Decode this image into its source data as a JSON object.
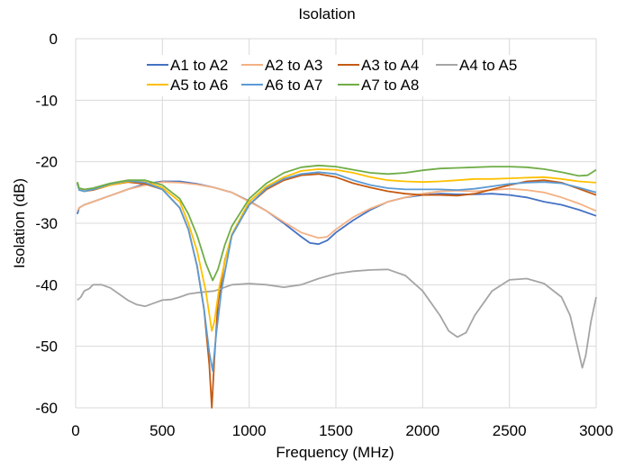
{
  "chart_data": {
    "type": "line",
    "title": "Isolation",
    "xlabel": "Frequency (MHz)",
    "ylabel": "Isolation (dB)",
    "xlim": [
      0,
      3000
    ],
    "ylim": [
      -60,
      0
    ],
    "xticks": [
      0,
      500,
      1000,
      1500,
      2000,
      2500,
      3000
    ],
    "yticks": [
      0,
      -10,
      -20,
      -30,
      -40,
      -50,
      -60
    ],
    "grid": true,
    "legend_position": "top",
    "series": [
      {
        "name": "A1 to A2",
        "color": "#4472C4",
        "points": [
          [
            10,
            -28.5
          ],
          [
            20,
            -27.5
          ],
          [
            50,
            -27
          ],
          [
            100,
            -26.5
          ],
          [
            200,
            -25.5
          ],
          [
            300,
            -24.5
          ],
          [
            400,
            -23.6
          ],
          [
            500,
            -23.2
          ],
          [
            600,
            -23.2
          ],
          [
            700,
            -23.6
          ],
          [
            800,
            -24.2
          ],
          [
            900,
            -25
          ],
          [
            1000,
            -26.4
          ],
          [
            1100,
            -28
          ],
          [
            1200,
            -30
          ],
          [
            1300,
            -32.2
          ],
          [
            1350,
            -33.2
          ],
          [
            1400,
            -33.4
          ],
          [
            1450,
            -32.8
          ],
          [
            1500,
            -31.5
          ],
          [
            1600,
            -29.5
          ],
          [
            1700,
            -27.8
          ],
          [
            1800,
            -26.5
          ],
          [
            1900,
            -25.8
          ],
          [
            2000,
            -25.4
          ],
          [
            2100,
            -25.2
          ],
          [
            2200,
            -25.3
          ],
          [
            2300,
            -25.3
          ],
          [
            2400,
            -25.2
          ],
          [
            2500,
            -25.4
          ],
          [
            2600,
            -25.8
          ],
          [
            2700,
            -26.5
          ],
          [
            2800,
            -27
          ],
          [
            2900,
            -27.8
          ],
          [
            3000,
            -28.8
          ]
        ]
      },
      {
        "name": "A2 to A3",
        "color": "#F4B183",
        "points": [
          [
            10,
            -28
          ],
          [
            20,
            -27.5
          ],
          [
            50,
            -27
          ],
          [
            100,
            -26.5
          ],
          [
            200,
            -25.5
          ],
          [
            300,
            -24.5
          ],
          [
            400,
            -23.8
          ],
          [
            500,
            -23.3
          ],
          [
            600,
            -23.4
          ],
          [
            700,
            -23.7
          ],
          [
            800,
            -24.2
          ],
          [
            900,
            -25
          ],
          [
            1000,
            -26.5
          ],
          [
            1100,
            -28
          ],
          [
            1200,
            -29.8
          ],
          [
            1300,
            -31.5
          ],
          [
            1400,
            -32.4
          ],
          [
            1450,
            -32.2
          ],
          [
            1500,
            -31
          ],
          [
            1600,
            -29
          ],
          [
            1700,
            -27.6
          ],
          [
            1800,
            -26.5
          ],
          [
            1900,
            -25.8
          ],
          [
            2000,
            -25.2
          ],
          [
            2100,
            -24.8
          ],
          [
            2200,
            -24.7
          ],
          [
            2300,
            -24.8
          ],
          [
            2400,
            -24.6
          ],
          [
            2500,
            -24.4
          ],
          [
            2600,
            -24.6
          ],
          [
            2700,
            -25
          ],
          [
            2800,
            -25.8
          ],
          [
            2900,
            -26.8
          ],
          [
            3000,
            -28
          ]
        ]
      },
      {
        "name": "A3 to A4",
        "color": "#C55A11",
        "points": [
          [
            10,
            -23.5
          ],
          [
            20,
            -24.5
          ],
          [
            50,
            -24.8
          ],
          [
            100,
            -24.6
          ],
          [
            200,
            -23.8
          ],
          [
            300,
            -23.3
          ],
          [
            400,
            -23.6
          ],
          [
            500,
            -24.5
          ],
          [
            600,
            -27.5
          ],
          [
            650,
            -31
          ],
          [
            700,
            -37
          ],
          [
            740,
            -44
          ],
          [
            770,
            -53
          ],
          [
            785,
            -60
          ],
          [
            800,
            -52
          ],
          [
            820,
            -43
          ],
          [
            860,
            -36
          ],
          [
            900,
            -32
          ],
          [
            1000,
            -27
          ],
          [
            1100,
            -24.5
          ],
          [
            1200,
            -23
          ],
          [
            1300,
            -22.2
          ],
          [
            1400,
            -22
          ],
          [
            1500,
            -22.5
          ],
          [
            1600,
            -23.5
          ],
          [
            1700,
            -24.2
          ],
          [
            1800,
            -24.8
          ],
          [
            1900,
            -25.2
          ],
          [
            2000,
            -25.4
          ],
          [
            2100,
            -25.4
          ],
          [
            2200,
            -25.5
          ],
          [
            2300,
            -25.2
          ],
          [
            2400,
            -24.5
          ],
          [
            2500,
            -23.8
          ],
          [
            2600,
            -23.2
          ],
          [
            2700,
            -23
          ],
          [
            2800,
            -23.4
          ],
          [
            2900,
            -24.4
          ],
          [
            3000,
            -25.4
          ]
        ]
      },
      {
        "name": "A4 to A5",
        "color": "#A5A5A5",
        "points": [
          [
            10,
            -42.5
          ],
          [
            30,
            -42
          ],
          [
            50,
            -41
          ],
          [
            80,
            -40.6
          ],
          [
            100,
            -40
          ],
          [
            150,
            -40
          ],
          [
            200,
            -40.5
          ],
          [
            250,
            -41.5
          ],
          [
            300,
            -42.5
          ],
          [
            350,
            -43.2
          ],
          [
            400,
            -43.5
          ],
          [
            450,
            -43
          ],
          [
            500,
            -42.5
          ],
          [
            550,
            -42.4
          ],
          [
            600,
            -42
          ],
          [
            650,
            -41.5
          ],
          [
            700,
            -41.3
          ],
          [
            800,
            -41
          ],
          [
            850,
            -40.5
          ],
          [
            900,
            -40
          ],
          [
            1000,
            -39.8
          ],
          [
            1100,
            -40
          ],
          [
            1200,
            -40.4
          ],
          [
            1300,
            -40
          ],
          [
            1400,
            -39
          ],
          [
            1500,
            -38.2
          ],
          [
            1600,
            -37.8
          ],
          [
            1700,
            -37.6
          ],
          [
            1800,
            -37.5
          ],
          [
            1900,
            -38.5
          ],
          [
            2000,
            -41
          ],
          [
            2100,
            -45
          ],
          [
            2150,
            -47.5
          ],
          [
            2200,
            -48.5
          ],
          [
            2250,
            -47.8
          ],
          [
            2300,
            -45
          ],
          [
            2400,
            -41
          ],
          [
            2500,
            -39.2
          ],
          [
            2600,
            -39
          ],
          [
            2700,
            -39.8
          ],
          [
            2800,
            -42
          ],
          [
            2850,
            -45
          ],
          [
            2900,
            -51
          ],
          [
            2920,
            -53.5
          ],
          [
            2940,
            -51.5
          ],
          [
            2970,
            -46
          ],
          [
            3000,
            -42
          ]
        ]
      },
      {
        "name": "A5 to A6",
        "color": "#FFC000",
        "points": [
          [
            10,
            -23.3
          ],
          [
            20,
            -24.5
          ],
          [
            50,
            -24.8
          ],
          [
            100,
            -24.5
          ],
          [
            200,
            -23.8
          ],
          [
            300,
            -23.2
          ],
          [
            400,
            -23.3
          ],
          [
            500,
            -24.2
          ],
          [
            600,
            -26.5
          ],
          [
            650,
            -30
          ],
          [
            700,
            -34.5
          ],
          [
            750,
            -41
          ],
          [
            785,
            -47.5
          ],
          [
            800,
            -46
          ],
          [
            830,
            -40
          ],
          [
            870,
            -35
          ],
          [
            900,
            -31.8
          ],
          [
            1000,
            -26.5
          ],
          [
            1100,
            -24
          ],
          [
            1200,
            -22.5
          ],
          [
            1300,
            -21.5
          ],
          [
            1400,
            -21.2
          ],
          [
            1500,
            -21.3
          ],
          [
            1600,
            -21.8
          ],
          [
            1700,
            -22.5
          ],
          [
            1800,
            -23
          ],
          [
            1900,
            -23.2
          ],
          [
            2000,
            -23.3
          ],
          [
            2100,
            -23.2
          ],
          [
            2200,
            -23
          ],
          [
            2300,
            -22.8
          ],
          [
            2400,
            -22.8
          ],
          [
            2500,
            -22.7
          ],
          [
            2600,
            -22.6
          ],
          [
            2700,
            -22.5
          ],
          [
            2800,
            -22.8
          ],
          [
            2900,
            -23.2
          ],
          [
            3000,
            -23.4
          ]
        ]
      },
      {
        "name": "A6 to A7",
        "color": "#5B9BD5",
        "points": [
          [
            10,
            -23.5
          ],
          [
            20,
            -24.6
          ],
          [
            50,
            -24.8
          ],
          [
            100,
            -24.5
          ],
          [
            200,
            -23.6
          ],
          [
            300,
            -23.1
          ],
          [
            400,
            -23.4
          ],
          [
            500,
            -24.5
          ],
          [
            600,
            -27.5
          ],
          [
            650,
            -31
          ],
          [
            700,
            -37
          ],
          [
            740,
            -44
          ],
          [
            770,
            -51
          ],
          [
            790,
            -54
          ],
          [
            810,
            -48
          ],
          [
            840,
            -41
          ],
          [
            880,
            -35
          ],
          [
            900,
            -32
          ],
          [
            1000,
            -27
          ],
          [
            1100,
            -24.3
          ],
          [
            1200,
            -22.8
          ],
          [
            1300,
            -22
          ],
          [
            1400,
            -21.7
          ],
          [
            1500,
            -22
          ],
          [
            1600,
            -23
          ],
          [
            1700,
            -23.8
          ],
          [
            1800,
            -24.3
          ],
          [
            1900,
            -24.5
          ],
          [
            2000,
            -24.5
          ],
          [
            2100,
            -24.5
          ],
          [
            2200,
            -24.6
          ],
          [
            2300,
            -24.4
          ],
          [
            2400,
            -24
          ],
          [
            2500,
            -23.6
          ],
          [
            2600,
            -23.4
          ],
          [
            2700,
            -23.3
          ],
          [
            2800,
            -23.5
          ],
          [
            2900,
            -24.2
          ],
          [
            3000,
            -25
          ]
        ]
      },
      {
        "name": "A7 to A8",
        "color": "#70AD47",
        "points": [
          [
            10,
            -23.3
          ],
          [
            20,
            -24.3
          ],
          [
            50,
            -24.5
          ],
          [
            100,
            -24.3
          ],
          [
            200,
            -23.5
          ],
          [
            300,
            -23
          ],
          [
            400,
            -23
          ],
          [
            500,
            -23.8
          ],
          [
            600,
            -26
          ],
          [
            650,
            -28.5
          ],
          [
            700,
            -32
          ],
          [
            750,
            -36.5
          ],
          [
            790,
            -39.3
          ],
          [
            820,
            -37.5
          ],
          [
            860,
            -33.5
          ],
          [
            900,
            -30.5
          ],
          [
            1000,
            -26
          ],
          [
            1100,
            -23.5
          ],
          [
            1200,
            -21.8
          ],
          [
            1300,
            -20.9
          ],
          [
            1400,
            -20.6
          ],
          [
            1500,
            -20.8
          ],
          [
            1600,
            -21.3
          ],
          [
            1700,
            -21.8
          ],
          [
            1800,
            -22
          ],
          [
            1900,
            -21.8
          ],
          [
            2000,
            -21.4
          ],
          [
            2100,
            -21.1
          ],
          [
            2200,
            -21
          ],
          [
            2300,
            -20.9
          ],
          [
            2400,
            -20.8
          ],
          [
            2500,
            -20.8
          ],
          [
            2600,
            -20.9
          ],
          [
            2700,
            -21.2
          ],
          [
            2800,
            -21.7
          ],
          [
            2900,
            -22.3
          ],
          [
            2950,
            -22.2
          ],
          [
            3000,
            -21.3
          ]
        ]
      }
    ]
  }
}
